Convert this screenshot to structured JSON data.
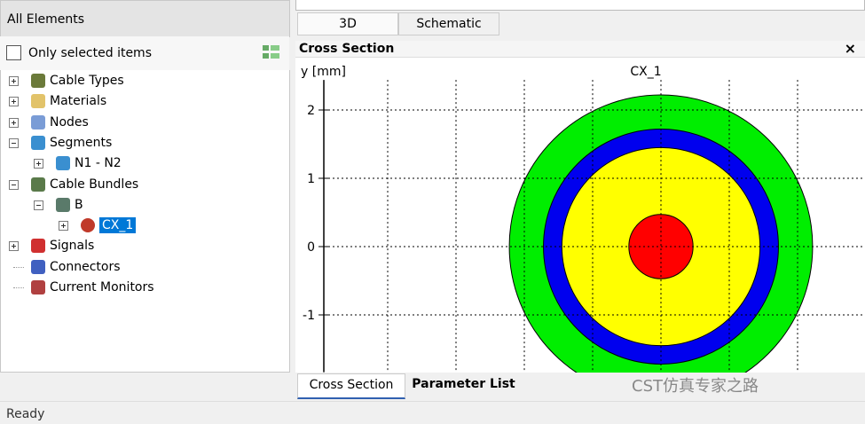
{
  "left_panel": {
    "title": "All Elements",
    "checkbox_label": "Only selected items",
    "tree": [
      {
        "label": "Cable Types",
        "level": 0,
        "expander": "plus"
      },
      {
        "label": "Materials",
        "level": 0,
        "expander": "plus"
      },
      {
        "label": "Nodes",
        "level": 0,
        "expander": "plus"
      },
      {
        "label": "Segments",
        "level": 0,
        "expander": "minus"
      },
      {
        "label": "N1 - N2",
        "level": 1,
        "expander": "plus"
      },
      {
        "label": "Cable Bundles",
        "level": 0,
        "expander": "minus"
      },
      {
        "label": "B",
        "level": 1,
        "expander": "minus"
      },
      {
        "label": "CX_1",
        "level": 2,
        "expander": "plus",
        "selected": true
      },
      {
        "label": "Signals",
        "level": 0,
        "expander": "plus"
      },
      {
        "label": "Connectors",
        "level": 0
      },
      {
        "label": "Current Monitors",
        "level": 0
      }
    ]
  },
  "top_tabs": [
    "3D",
    "Schematic"
  ],
  "cross_section": {
    "panel_title": "Cross Section",
    "close": "×",
    "plot": {
      "title": "CX_1",
      "y_label": "y [mm]",
      "ylim": [
        -1.84,
        2.44
      ],
      "yticks": [
        2,
        1,
        0,
        -1
      ],
      "xgrid": [
        -4,
        -3,
        -2,
        -1,
        0,
        1,
        2
      ],
      "layers": [
        {
          "color": "#00ee00",
          "radius": 2.22
        },
        {
          "color": "#0000ee",
          "radius": 1.72
        },
        {
          "color": "#ffff00",
          "radius": 1.45
        },
        {
          "color": "#ff0000",
          "radius": 0.47
        }
      ]
    }
  },
  "bottom_tabs": [
    "Cross Section",
    "Parameter List"
  ],
  "status": "Ready",
  "watermark": "CST仿真专家之路"
}
